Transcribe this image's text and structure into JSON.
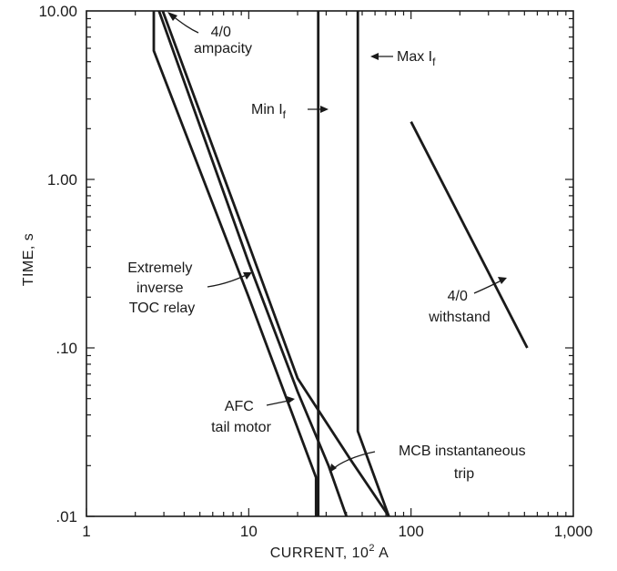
{
  "chart_data": {
    "type": "line",
    "xlabel": "CURRENT, 10",
    "xlabel_sup": "2",
    "xlabel_unit": " A",
    "ylabel": "TIME, s",
    "xscale": "log",
    "yscale": "log",
    "xlim": [
      1,
      1000
    ],
    "ylim": [
      0.01,
      10
    ],
    "x_ticks": [
      {
        "value": 1,
        "label": "1"
      },
      {
        "value": 10,
        "label": "10"
      },
      {
        "value": 100,
        "label": "100"
      },
      {
        "value": 1000,
        "label": "1,000"
      }
    ],
    "y_ticks": [
      {
        "value": 0.01,
        "label": ".01"
      },
      {
        "value": 0.1,
        "label": ".10"
      },
      {
        "value": 1,
        "label": "1.00"
      },
      {
        "value": 10,
        "label": "10.00"
      }
    ],
    "grid": false,
    "series": [
      {
        "id": "afc-tail-motor",
        "points": [
          [
            2.6,
            10
          ],
          [
            2.6,
            5.8
          ],
          [
            10,
            0.2
          ],
          [
            26,
            0.017
          ],
          [
            26,
            0.01
          ]
        ]
      },
      {
        "id": "extremely-inverse-toc-relay",
        "points": [
          [
            2.8,
            10
          ],
          [
            10,
            0.32
          ],
          [
            20,
            0.055
          ],
          [
            31,
            0.02
          ],
          [
            40,
            0.01
          ]
        ]
      },
      {
        "id": "ampacity-4-0",
        "points": [
          [
            2.95,
            10
          ],
          [
            10.3,
            0.38
          ],
          [
            20,
            0.066
          ],
          [
            42,
            0.022
          ],
          [
            73,
            0.01
          ]
        ]
      },
      {
        "id": "min-fault-current",
        "points": [
          [
            26.8,
            10
          ],
          [
            26.8,
            0.01
          ]
        ]
      },
      {
        "id": "max-fault-current",
        "points": [
          [
            47,
            10
          ],
          [
            47,
            0.032
          ],
          [
            73,
            0.01
          ]
        ]
      },
      {
        "id": "withstand-4-0",
        "points": [
          [
            100,
            2.2
          ],
          [
            520,
            0.1
          ]
        ]
      }
    ],
    "annotations": [
      {
        "id": "ampacity",
        "lines": [
          "4/0",
          "ampacity"
        ]
      },
      {
        "id": "max-if",
        "text": "Max I",
        "sub": "f"
      },
      {
        "id": "min-if",
        "text": "Min I",
        "sub": "f"
      },
      {
        "id": "relay",
        "lines": [
          "Extremely",
          "inverse",
          "TOC relay"
        ]
      },
      {
        "id": "withstand",
        "lines": [
          "4/0",
          "withstand"
        ]
      },
      {
        "id": "afc",
        "lines": [
          "AFC",
          "tail motor"
        ]
      },
      {
        "id": "mcb",
        "lines": [
          "MCB instantaneous",
          "trip"
        ]
      }
    ]
  }
}
